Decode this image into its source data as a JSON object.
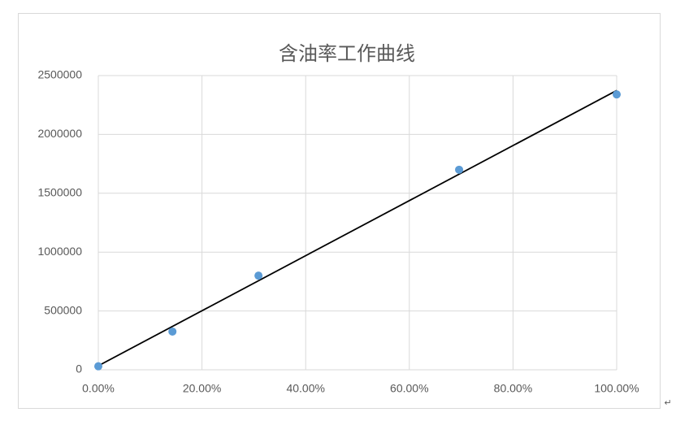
{
  "chart_data": {
    "type": "scatter",
    "title": "含油率工作曲线",
    "x": [
      0,
      0.143,
      0.309,
      0.696,
      1.0
    ],
    "series": [
      {
        "name": "含油率",
        "color": "#5b9bd5",
        "values": [
          30000,
          325000,
          800000,
          1700000,
          2340000
        ]
      }
    ],
    "trendline": "linear",
    "trendline_color": "#000000",
    "xlim": [
      0,
      1
    ],
    "xticks": [
      {
        "value": 0,
        "label": "0.00%"
      },
      {
        "value": 0.2,
        "label": "20.00%"
      },
      {
        "value": 0.4,
        "label": "40.00%"
      },
      {
        "value": 0.6,
        "label": "60.00%"
      },
      {
        "value": 0.8,
        "label": "80.00%"
      },
      {
        "value": 1,
        "label": "100.00%"
      }
    ],
    "ylim": [
      0,
      2500000
    ],
    "yticks": [
      0,
      500000,
      1000000,
      1500000,
      2000000,
      2500000
    ],
    "grid": true,
    "legend": false
  },
  "document": {
    "paragraph_mark": "↵"
  }
}
